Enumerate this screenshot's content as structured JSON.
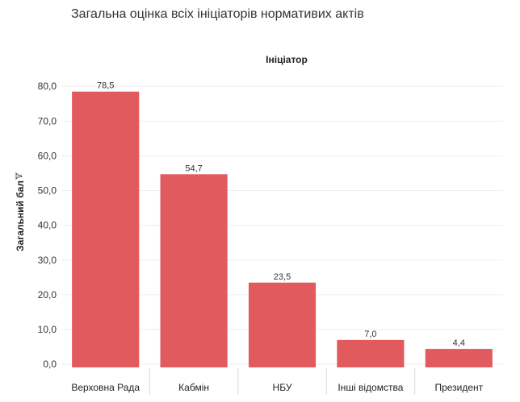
{
  "page": {
    "title": "Загальна оцінка всіх ініціаторів нормативих актів"
  },
  "chart_data": {
    "type": "bar",
    "title": "",
    "header": "Ініціатор",
    "xlabel": "",
    "ylabel": "Загальний бал",
    "ylabel_icon": "filter-icon",
    "categories": [
      "Верховна Рада",
      "Кабмін",
      "НБУ",
      "Інші відомства",
      "Президент"
    ],
    "values": [
      78.5,
      54.7,
      23.5,
      7.0,
      4.4
    ],
    "data_labels": [
      "78,5",
      "54,7",
      "23,5",
      "7,0",
      "4,4"
    ],
    "yticks": [
      0,
      10,
      20,
      30,
      40,
      50,
      60,
      70,
      80
    ],
    "ytick_labels": [
      "0,0",
      "10,0",
      "20,0",
      "30,0",
      "40,0",
      "50,0",
      "60,0",
      "70,0",
      "80,0"
    ],
    "ylim": [
      -3,
      84
    ],
    "grid": true,
    "legend": "none",
    "bar_color": "#E05A5E"
  }
}
